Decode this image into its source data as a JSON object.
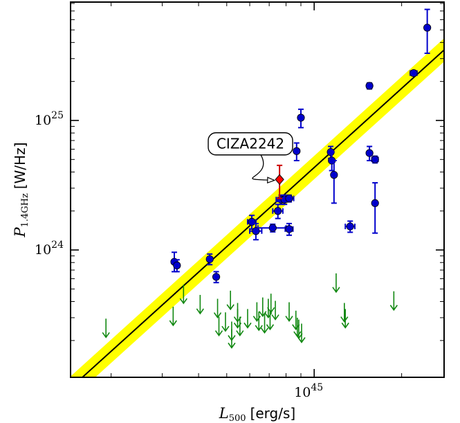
{
  "chart_data": {
    "type": "scatter",
    "title": "",
    "xlabel_math": "L",
    "xlabel_sub": "500",
    "xlabel_unit": "[erg/s]",
    "ylabel_math": "P",
    "ylabel_sub": "1.4GHz",
    "ylabel_unit": "[W/Hz]",
    "x_scale": "log",
    "y_scale": "log",
    "xlim": [
      1.45e+44,
      2.8e+45
    ],
    "ylim": [
      1.04e+23,
      8.2e+25
    ],
    "x_tick_labels": [
      {
        "value": 1e+45,
        "base": "10",
        "exp": "45"
      }
    ],
    "y_tick_labels": [
      {
        "value": 1e+24,
        "base": "10",
        "exp": "24"
      },
      {
        "value": 1e+25,
        "base": "10",
        "exp": "25"
      }
    ],
    "fit_line": {
      "color": "#000000",
      "band_color": "#ffff00",
      "points": [
        [
          1.45e+44,
          8.6e+22
        ],
        [
          2.8e+45,
          3.5e+25
        ]
      ],
      "band_half_width_dex": 0.09
    },
    "series": [
      {
        "marker": "circle",
        "color": "#0000cc",
        "points": [
          {
            "x": 3.3e+44,
            "y": 8.1e+23,
            "yerr": [
              1.3e+23,
              1.5e+23
            ]
          },
          {
            "x": 3.37e+44,
            "y": 7.6e+23,
            "yerr": [
              8e+22,
              8e+22
            ]
          },
          {
            "x": 4.37e+44,
            "y": 8.5e+23,
            "yerr": [
              8e+22,
              8e+22
            ]
          },
          {
            "x": 4.6e+44,
            "y": 6.2e+23,
            "yerr": [
              6e+22,
              6e+22
            ]
          },
          {
            "x": 6.1e+44,
            "y": 1.65e+24,
            "yerr": [
              2e+23,
              2e+23
            ],
            "xerr": [
              2e+43,
              2e+43
            ]
          },
          {
            "x": 6.3e+44,
            "y": 1.4e+24,
            "yerr": [
              2e+23,
              2e+23
            ],
            "xerr": [
              3e+43,
              3e+43
            ]
          },
          {
            "x": 7.2e+44,
            "y": 1.48e+24,
            "yerr": [
              1e+23,
              1e+23
            ],
            "xerr": [
              8e+43,
              8e+43
            ]
          },
          {
            "x": 7.5e+44,
            "y": 2e+24,
            "yerr": [
              2.5e+23,
              2.5e+23
            ],
            "xerr": [
              3e+43,
              3e+43
            ]
          },
          {
            "x": 7.7e+44,
            "y": 2.45e+24,
            "yerr": [
              2e+23,
              2e+23
            ],
            "xerr": [
              3e+43,
              3e+43
            ]
          },
          {
            "x": 7.9e+44,
            "y": 2.45e+24,
            "yerr": [
              2e+23,
              2e+23
            ],
            "xerr": [
              4e+43,
              4e+43
            ]
          },
          {
            "x": 8.2e+44,
            "y": 2.5e+24,
            "yerr": [
              1.5e+23,
              1.5e+23
            ],
            "xerr": [
              3e+43,
              3e+43
            ]
          },
          {
            "x": 8.2e+44,
            "y": 1.45e+24,
            "yerr": [
              1.5e+23,
              1.5e+23
            ],
            "xerr": [
              2.5e+43,
              2.5e+43
            ]
          },
          {
            "x": 8.7e+44,
            "y": 5.8e+24,
            "yerr": [
              9e+23,
              9e+23
            ]
          },
          {
            "x": 9e+44,
            "y": 1.05e+25,
            "yerr": [
              1.7e+24,
              1.7e+24
            ]
          },
          {
            "x": 1.14e+45,
            "y": 5.7e+24,
            "yerr": [
              6e+23,
              6e+23
            ]
          },
          {
            "x": 1.15e+45,
            "y": 4.9e+24,
            "yerr": [
              8e+23,
              8e+23
            ]
          },
          {
            "x": 1.17e+45,
            "y": 3.8e+24,
            "yerr": [
              1.5e+24,
              1.1e+24
            ]
          },
          {
            "x": 1.33e+45,
            "y": 1.52e+24,
            "yerr": [
              1.5e+23,
              1.5e+23
            ],
            "xerr": [
              5e+43,
              5e+43
            ]
          },
          {
            "x": 1.55e+45,
            "y": 1.85e+25,
            "yerr": [
              1e+24,
              1e+24
            ],
            "xerr": [
              3e+43,
              3e+43
            ]
          },
          {
            "x": 1.55e+45,
            "y": 5.6e+24,
            "yerr": [
              7e+23,
              7e+23
            ]
          },
          {
            "x": 1.62e+45,
            "y": 5e+24,
            "yerr": [
              3e+23,
              3e+23
            ],
            "xerr": [
              4e+43,
              4e+43
            ]
          },
          {
            "x": 1.62e+45,
            "y": 2.3e+24,
            "yerr": [
              9.5e+23,
              1e+24
            ]
          },
          {
            "x": 2.2e+45,
            "y": 2.32e+25,
            "yerr": [
              1e+24,
              1e+24
            ],
            "xerr": [
              6e+43,
              6e+43
            ]
          },
          {
            "x": 2.45e+45,
            "y": 5.2e+25,
            "yerr": [
              1.9e+25,
              2e+25
            ]
          }
        ]
      },
      {
        "marker": "diamond",
        "color": "#ff0000",
        "errcolor": "#cc0000",
        "points": [
          {
            "x": 7.6e+44,
            "y": 3.5e+24,
            "yerr": [
              1e+24,
              1e+24
            ]
          }
        ]
      },
      {
        "marker": "upper-limit-arrow",
        "color": "#118811",
        "points": [
          {
            "x": 1.92e+44,
            "y": 2.95e+23
          },
          {
            "x": 3.27e+44,
            "y": 3.65e+23
          },
          {
            "x": 3.55e+44,
            "y": 5.4e+23
          },
          {
            "x": 4.05e+44,
            "y": 4.5e+23
          },
          {
            "x": 4.65e+44,
            "y": 4.2e+23
          },
          {
            "x": 4.7e+44,
            "y": 3.05e+23
          },
          {
            "x": 4.95e+44,
            "y": 3.3e+23
          },
          {
            "x": 5.15e+44,
            "y": 4.85e+23
          },
          {
            "x": 5.2e+44,
            "y": 2.8e+23
          },
          {
            "x": 5.2e+44,
            "y": 2.45e+23
          },
          {
            "x": 5.45e+44,
            "y": 3.5e+23
          },
          {
            "x": 5.45e+44,
            "y": 3.9e+23
          },
          {
            "x": 5.55e+44,
            "y": 3.05e+23
          },
          {
            "x": 5.9e+44,
            "y": 3.5e+23
          },
          {
            "x": 6.35e+44,
            "y": 3.95e+23
          },
          {
            "x": 6.45e+44,
            "y": 3.35e+23
          },
          {
            "x": 6.65e+44,
            "y": 4.3e+23
          },
          {
            "x": 6.75e+44,
            "y": 3.2e+23
          },
          {
            "x": 6.95e+44,
            "y": 4.2e+23
          },
          {
            "x": 7.05e+44,
            "y": 3.4e+23
          },
          {
            "x": 7.1e+44,
            "y": 4.6e+23
          },
          {
            "x": 7.35e+44,
            "y": 4.05e+23
          },
          {
            "x": 8.2e+44,
            "y": 3.95e+23
          },
          {
            "x": 8.65e+44,
            "y": 3.4e+23
          },
          {
            "x": 8.75e+44,
            "y": 3e+23
          },
          {
            "x": 8.85e+44,
            "y": 2.9e+23
          },
          {
            "x": 9.05e+44,
            "y": 2.7e+23
          },
          {
            "x": 1.19e+45,
            "y": 6.6e+23
          },
          {
            "x": 1.27e+45,
            "y": 3.9e+23
          },
          {
            "x": 1.28e+45,
            "y": 3.5e+23
          },
          {
            "x": 1.88e+45,
            "y": 4.8e+23
          }
        ]
      }
    ],
    "annotations": [
      {
        "text": "CIZA2242",
        "box_at": [
          6.1e+44,
          6.6e+24
        ],
        "arrow_to": [
          7.3e+44,
          3.45e+24
        ]
      }
    ],
    "grid": false
  }
}
